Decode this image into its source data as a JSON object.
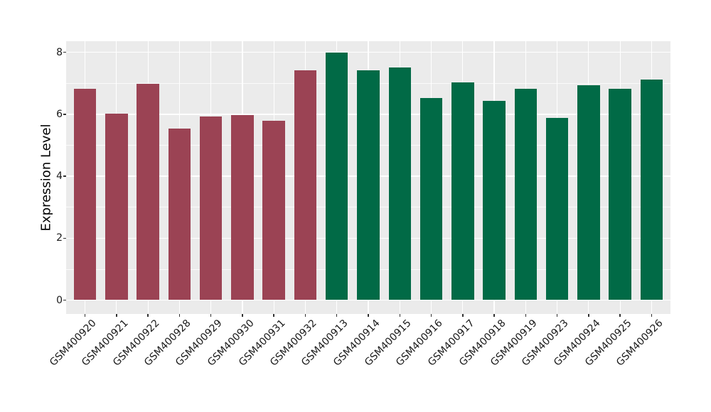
{
  "chart_data": {
    "type": "bar",
    "title": "",
    "xlabel": "",
    "ylabel": "Expression Level",
    "ylim": [
      0,
      8.4
    ],
    "yticks": [
      0,
      2,
      4,
      6,
      8
    ],
    "yticks_minor": [
      1,
      3,
      5,
      7
    ],
    "grid": "white major and minor horizontal gridlines plus vertical gridline at each category center, drawn on gray panel (ggplot style)",
    "legend": false,
    "panel_background": "#EBEBEB",
    "gridline_color": "#FFFFFF",
    "group_colors": {
      "red_group": "#9B4354",
      "green_group": "#016A46"
    },
    "categories": [
      "GSM400920",
      "GSM400921",
      "GSM400922",
      "GSM400928",
      "GSM400929",
      "GSM400930",
      "GSM400931",
      "GSM400932",
      "GSM400913",
      "GSM400914",
      "GSM400915",
      "GSM400916",
      "GSM400917",
      "GSM400918",
      "GSM400919",
      "GSM400923",
      "GSM400924",
      "GSM400925",
      "GSM400926"
    ],
    "values": [
      6.82,
      6.03,
      6.98,
      5.54,
      5.93,
      5.98,
      5.79,
      7.41,
      8.0,
      7.41,
      7.51,
      6.53,
      7.04,
      6.43,
      6.83,
      5.88,
      6.93,
      6.82,
      7.12
    ],
    "bar_groups": [
      "red_group",
      "red_group",
      "red_group",
      "red_group",
      "red_group",
      "red_group",
      "red_group",
      "red_group",
      "green_group",
      "green_group",
      "green_group",
      "green_group",
      "green_group",
      "green_group",
      "green_group",
      "green_group",
      "green_group",
      "green_group",
      "green_group"
    ]
  }
}
